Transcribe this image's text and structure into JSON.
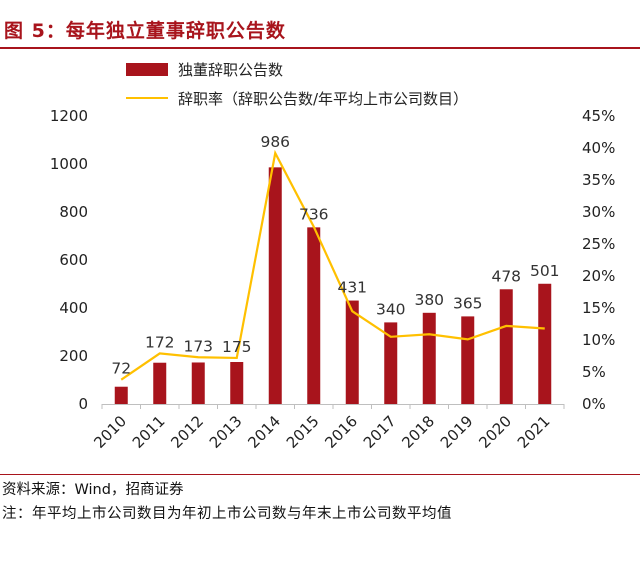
{
  "figure": {
    "title": "图 5：每年独立董事辞职公告数",
    "source": "资料来源：Wind，招商证券",
    "note": "注：年平均上市公司数目为年初上市公司数与年末上市公司数平均值"
  },
  "chart_data": {
    "type": "bar+line",
    "categories": [
      "2010",
      "2011",
      "2012",
      "2013",
      "2014",
      "2015",
      "2016",
      "2017",
      "2018",
      "2019",
      "2020",
      "2021"
    ],
    "series": [
      {
        "name": "独董辞职公告数",
        "type": "bar",
        "axis": "left",
        "color": "#a8141c",
        "values": [
          72,
          172,
          173,
          175,
          986,
          736,
          431,
          340,
          380,
          365,
          478,
          501
        ],
        "labels": [
          "72",
          "172",
          "173",
          "175",
          "986",
          "736",
          "431",
          "340",
          "380",
          "365",
          "478",
          "501"
        ]
      },
      {
        "name": "辞职率（辞职公告数/年平均上市公司数目）",
        "type": "line",
        "axis": "right",
        "color": "#ffc000",
        "values": [
          3.8,
          7.9,
          7.3,
          7.2,
          39.2,
          27.7,
          14.5,
          10.5,
          10.9,
          10.1,
          12.2,
          11.8
        ]
      }
    ],
    "y_left": {
      "range": [
        0,
        1200
      ],
      "ticks": [
        "0",
        "200",
        "400",
        "600",
        "800",
        "1000",
        "1200"
      ]
    },
    "y_right": {
      "range": [
        0,
        45
      ],
      "ticks": [
        "0%",
        "5%",
        "10%",
        "15%",
        "20%",
        "25%",
        "30%",
        "35%",
        "40%",
        "45%"
      ]
    },
    "legend_position": "top-center"
  }
}
